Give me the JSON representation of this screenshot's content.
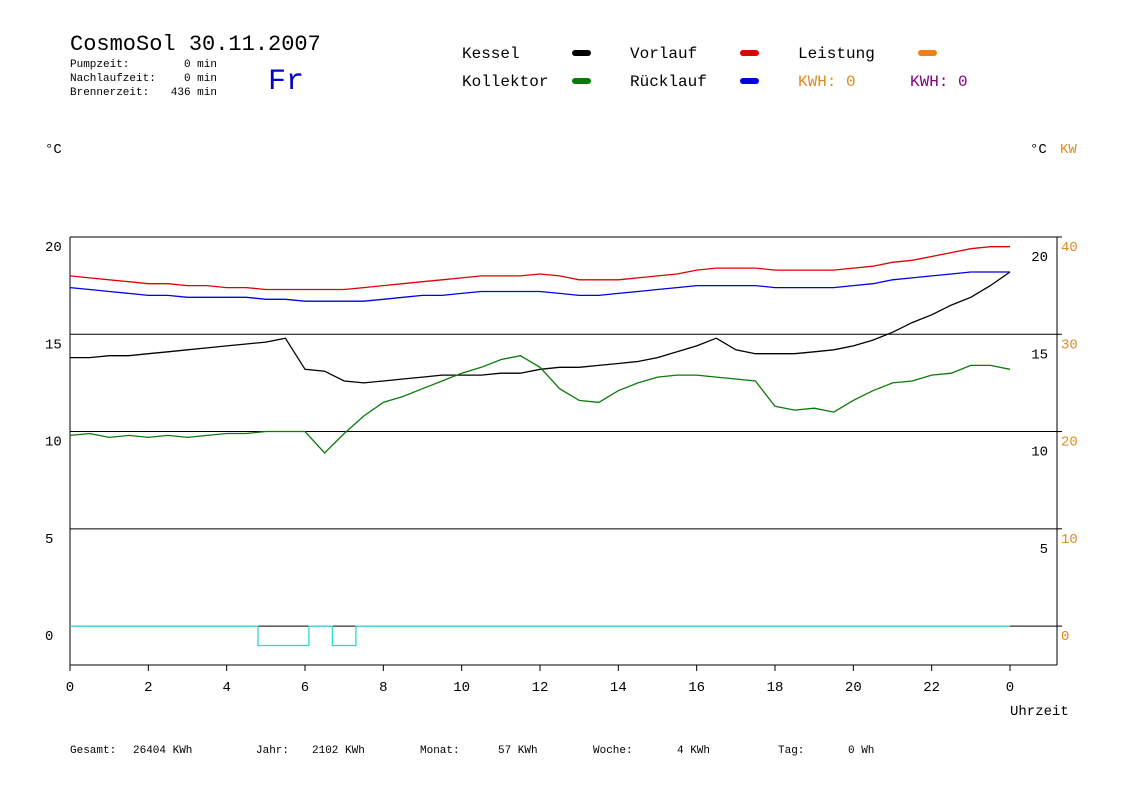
{
  "chart_data": {
    "type": "line",
    "title": "CosmoSol 30.11.2007",
    "day": "Fr",
    "info": [
      {
        "label": "Pumpzeit:",
        "value": "0 min"
      },
      {
        "label": "Nachlaufzeit:",
        "value": "0 min"
      },
      {
        "label": "Brennerzeit:",
        "value": "436 min"
      }
    ],
    "kwh_labels": [
      {
        "text": "KWH: 0",
        "color": "#e08a1e"
      },
      {
        "text": "KWH: 0",
        "color": "#800080"
      }
    ],
    "y_label": "°C",
    "y2_labels": [
      {
        "text": "°C",
        "color": "#000000"
      },
      {
        "text": "KW",
        "color": "#e08a1e"
      }
    ],
    "x_label": "Uhrzeit",
    "xlim": [
      0,
      25.2
    ],
    "xticks": [
      0,
      2,
      4,
      6,
      8,
      10,
      12,
      14,
      16,
      18,
      20,
      22,
      {
        "value": 24,
        "label": "0"
      }
    ],
    "ylim": [
      -2,
      20
    ],
    "yticks": [
      0,
      5,
      10,
      15,
      20
    ],
    "y_right_ticks": [
      5,
      10,
      15,
      20
    ],
    "y2lim": [
      -4,
      40
    ],
    "y2ticks": [
      0,
      10,
      20,
      30,
      40
    ],
    "y2_color": "#e08a1e",
    "grid": true,
    "x": [
      0,
      0.5,
      1,
      1.5,
      2,
      2.5,
      3,
      3.5,
      4,
      4.5,
      5,
      5.5,
      6,
      6.5,
      7,
      7.5,
      8,
      8.5,
      9,
      9.5,
      10,
      10.5,
      11,
      11.5,
      12,
      12.5,
      13,
      13.5,
      14,
      14.5,
      15,
      15.5,
      16,
      16.5,
      17,
      17.5,
      18,
      18.5,
      19,
      19.5,
      20,
      20.5,
      21,
      21.5,
      22,
      22.5,
      23,
      23.5,
      24
    ],
    "series": [
      {
        "name": "Kessel",
        "color": "#000000",
        "values": [
          13.8,
          13.8,
          13.9,
          13.9,
          14.0,
          14.1,
          14.2,
          14.3,
          14.4,
          14.5,
          14.6,
          14.8,
          13.2,
          13.1,
          12.6,
          12.5,
          12.6,
          12.7,
          12.8,
          12.9,
          12.9,
          12.9,
          13.0,
          13.0,
          13.2,
          13.3,
          13.3,
          13.4,
          13.5,
          13.6,
          13.8,
          14.1,
          14.4,
          14.8,
          14.2,
          14.0,
          14.0,
          14.0,
          14.1,
          14.2,
          14.4,
          14.7,
          15.1,
          15.6,
          16.0,
          16.5,
          16.9,
          17.5,
          18.2
        ]
      },
      {
        "name": "Kollektor",
        "color": "#0a7a0a",
        "values": [
          9.8,
          9.9,
          9.7,
          9.8,
          9.7,
          9.8,
          9.7,
          9.8,
          9.9,
          9.9,
          10.0,
          10.0,
          10.0,
          8.9,
          9.9,
          10.8,
          11.5,
          11.8,
          12.2,
          12.6,
          13.0,
          13.3,
          13.7,
          13.9,
          13.3,
          12.2,
          11.6,
          11.5,
          12.1,
          12.5,
          12.8,
          12.9,
          12.9,
          12.8,
          12.7,
          12.6,
          11.3,
          11.1,
          11.2,
          11.0,
          11.6,
          12.1,
          12.5,
          12.6,
          12.9,
          13.0,
          13.4,
          13.4,
          13.2
        ]
      },
      {
        "name": "Vorlauf",
        "color": "#e00000",
        "values": [
          18.0,
          17.9,
          17.8,
          17.7,
          17.6,
          17.6,
          17.5,
          17.5,
          17.4,
          17.4,
          17.3,
          17.3,
          17.3,
          17.3,
          17.3,
          17.4,
          17.5,
          17.6,
          17.7,
          17.8,
          17.9,
          18.0,
          18.0,
          18.0,
          18.1,
          18.0,
          17.8,
          17.8,
          17.8,
          17.9,
          18.0,
          18.1,
          18.3,
          18.4,
          18.4,
          18.4,
          18.3,
          18.3,
          18.3,
          18.3,
          18.4,
          18.5,
          18.7,
          18.8,
          19.0,
          19.2,
          19.4,
          19.5,
          19.5
        ]
      },
      {
        "name": "Rücklauf",
        "color": "#0000e0",
        "values": [
          17.4,
          17.3,
          17.2,
          17.1,
          17.0,
          17.0,
          16.9,
          16.9,
          16.9,
          16.9,
          16.8,
          16.8,
          16.7,
          16.7,
          16.7,
          16.7,
          16.8,
          16.9,
          17.0,
          17.0,
          17.1,
          17.2,
          17.2,
          17.2,
          17.2,
          17.1,
          17.0,
          17.0,
          17.1,
          17.2,
          17.3,
          17.4,
          17.5,
          17.5,
          17.5,
          17.5,
          17.4,
          17.4,
          17.4,
          17.4,
          17.5,
          17.6,
          17.8,
          17.9,
          18.0,
          18.1,
          18.2,
          18.2,
          18.2
        ]
      },
      {
        "name": "Leistung",
        "color": "#f08018"
      },
      {
        "color": "#30d8d8",
        "x": [
          0,
          4.8,
          4.8,
          6.1,
          6.1,
          6.7,
          6.7,
          7.3,
          7.3,
          24
        ],
        "values": [
          0,
          0,
          -1,
          -1,
          0,
          0,
          -1,
          -1,
          0,
          0
        ]
      }
    ],
    "footer": [
      {
        "label": "Gesamt:",
        "value": "26404 KWh"
      },
      {
        "label": "Jahr:",
        "value": "2102 KWh"
      },
      {
        "label": "Monat:",
        "value": "57 KWh"
      },
      {
        "label": "Woche:",
        "value": "4 KWh"
      },
      {
        "label": "Tag:",
        "value": "0 Wh"
      }
    ]
  }
}
